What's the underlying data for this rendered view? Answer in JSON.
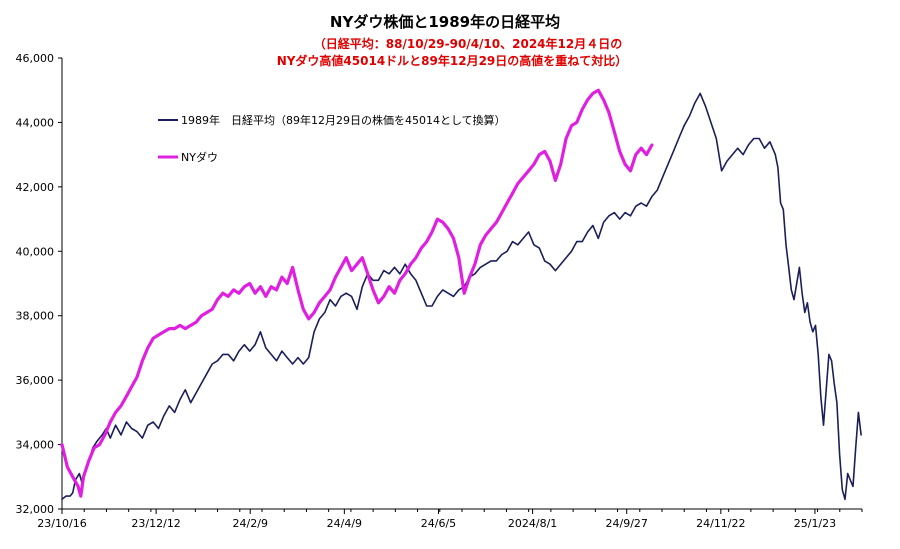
{
  "chart_data": {
    "type": "line",
    "title": "NYダウ株価と1989年の日経平均",
    "subtitle_lines": [
      "（日経平均：88/10/29-90/4/10、2024年12月４日の",
      "NYダウ高値45014ドルと89年12月29日の高値を重ねて対比）"
    ],
    "ylim": [
      32000,
      46000
    ],
    "y_ticks": [
      32000,
      34000,
      36000,
      38000,
      40000,
      42000,
      44000,
      46000
    ],
    "y_tick_labels": [
      "32,000",
      "34,000",
      "36,000",
      "38,000",
      "40,000",
      "42,000",
      "44,000",
      "46,000"
    ],
    "x_tick_labels": [
      "23/10/16",
      "23/12/12",
      "24/2/9",
      "24/4/9",
      "24/6/5",
      "2024/8/1",
      "24/9/27",
      "24/11/22",
      "25/1/23"
    ],
    "x_tick_index": [
      0,
      40,
      80,
      120,
      160,
      200,
      240,
      280,
      320
    ],
    "x_count": 340,
    "grid": false,
    "colors": {
      "nikkei": "#1a1f5c",
      "dow": "#e020e0"
    },
    "series": [
      {
        "name": "1989年　日経平均（89年12月29日の株価を45014として換算）",
        "color": "#1a1f5c",
        "points": [
          [
            0,
            32300
          ],
          [
            3,
            32400
          ],
          [
            6,
            32400
          ],
          [
            8,
            32500
          ],
          [
            10,
            32900
          ],
          [
            13,
            33100
          ],
          [
            15,
            32800
          ],
          [
            17,
            33100
          ],
          [
            20,
            33500
          ],
          [
            23,
            33900
          ],
          [
            26,
            34100
          ],
          [
            30,
            34300
          ],
          [
            33,
            34500
          ],
          [
            36,
            34200
          ],
          [
            40,
            34600
          ],
          [
            44,
            34300
          ],
          [
            48,
            34700
          ],
          [
            52,
            34500
          ],
          [
            56,
            34400
          ],
          [
            60,
            34200
          ],
          [
            64,
            34600
          ],
          [
            68,
            34700
          ],
          [
            72,
            34500
          ],
          [
            76,
            34900
          ],
          [
            80,
            35200
          ],
          [
            84,
            35000
          ],
          [
            88,
            35400
          ],
          [
            92,
            35700
          ],
          [
            96,
            35300
          ],
          [
            100,
            35600
          ],
          [
            104,
            35900
          ],
          [
            108,
            36200
          ],
          [
            112,
            36500
          ],
          [
            116,
            36600
          ],
          [
            120,
            36800
          ],
          [
            124,
            36800
          ],
          [
            128,
            36600
          ],
          [
            132,
            36900
          ],
          [
            136,
            37100
          ],
          [
            140,
            36900
          ],
          [
            144,
            37100
          ],
          [
            148,
            37500
          ],
          [
            152,
            37000
          ],
          [
            156,
            36800
          ],
          [
            160,
            36600
          ],
          [
            164,
            36900
          ],
          [
            168,
            36700
          ],
          [
            172,
            36500
          ],
          [
            176,
            36700
          ],
          [
            180,
            36500
          ],
          [
            184,
            36700
          ],
          [
            188,
            37500
          ],
          [
            192,
            37900
          ],
          [
            196,
            38100
          ],
          [
            200,
            38500
          ],
          [
            204,
            38300
          ],
          [
            208,
            38600
          ],
          [
            212,
            38700
          ],
          [
            216,
            38600
          ],
          [
            220,
            38200
          ],
          [
            224,
            38900
          ],
          [
            228,
            39300
          ],
          [
            232,
            39100
          ],
          [
            236,
            39100
          ],
          [
            240,
            39400
          ],
          [
            244,
            39300
          ],
          [
            248,
            39500
          ],
          [
            252,
            39300
          ],
          [
            256,
            39600
          ],
          [
            260,
            39300
          ],
          [
            264,
            39100
          ],
          [
            268,
            38700
          ],
          [
            272,
            38300
          ],
          [
            276,
            38300
          ],
          [
            280,
            38600
          ],
          [
            284,
            38800
          ],
          [
            288,
            38700
          ],
          [
            292,
            38600
          ],
          [
            296,
            38800
          ],
          [
            300,
            38900
          ],
          [
            304,
            39200
          ],
          [
            308,
            39300
          ],
          [
            312,
            39500
          ],
          [
            316,
            39600
          ],
          [
            320,
            39700
          ],
          [
            324,
            39700
          ],
          [
            328,
            39900
          ],
          [
            332,
            40000
          ],
          [
            336,
            40300
          ],
          [
            340,
            40200
          ],
          [
            344,
            40400
          ],
          [
            348,
            40600
          ],
          [
            352,
            40200
          ],
          [
            356,
            40100
          ],
          [
            360,
            39700
          ],
          [
            364,
            39600
          ],
          [
            368,
            39400
          ],
          [
            372,
            39600
          ],
          [
            376,
            39800
          ],
          [
            380,
            40000
          ],
          [
            384,
            40300
          ],
          [
            388,
            40300
          ],
          [
            392,
            40600
          ],
          [
            396,
            40800
          ],
          [
            400,
            40400
          ],
          [
            404,
            40900
          ],
          [
            408,
            41100
          ],
          [
            412,
            41200
          ],
          [
            416,
            41000
          ],
          [
            420,
            41200
          ],
          [
            424,
            41100
          ],
          [
            428,
            41400
          ],
          [
            432,
            41500
          ],
          [
            436,
            41400
          ],
          [
            440,
            41700
          ],
          [
            444,
            41900
          ],
          [
            448,
            42300
          ],
          [
            452,
            42700
          ],
          [
            456,
            43100
          ],
          [
            460,
            43500
          ],
          [
            464,
            43900
          ],
          [
            468,
            44200
          ],
          [
            472,
            44600
          ],
          [
            476,
            44900
          ],
          [
            480,
            44500
          ],
          [
            484,
            44000
          ],
          [
            488,
            43500
          ],
          [
            492,
            42500
          ],
          [
            496,
            42800
          ],
          [
            500,
            43000
          ],
          [
            504,
            43200
          ],
          [
            508,
            43000
          ],
          [
            512,
            43300
          ],
          [
            516,
            43500
          ],
          [
            520,
            43500
          ],
          [
            524,
            43200
          ],
          [
            528,
            43400
          ],
          [
            532,
            43000
          ],
          [
            534,
            42600
          ],
          [
            536,
            41500
          ],
          [
            538,
            41300
          ],
          [
            540,
            40200
          ],
          [
            542,
            39500
          ],
          [
            544,
            38800
          ],
          [
            546,
            38500
          ],
          [
            548,
            39000
          ],
          [
            550,
            39500
          ],
          [
            552,
            38700
          ],
          [
            554,
            38100
          ],
          [
            556,
            38400
          ],
          [
            558,
            37800
          ],
          [
            560,
            37500
          ],
          [
            562,
            37700
          ],
          [
            564,
            36800
          ],
          [
            566,
            35500
          ],
          [
            568,
            34600
          ],
          [
            570,
            35700
          ],
          [
            572,
            36800
          ],
          [
            574,
            36600
          ],
          [
            576,
            35900
          ],
          [
            578,
            35300
          ],
          [
            580,
            33700
          ],
          [
            582,
            32600
          ],
          [
            584,
            32300
          ],
          [
            586,
            33100
          ],
          [
            588,
            32900
          ],
          [
            590,
            32700
          ],
          [
            592,
            33900
          ],
          [
            594,
            35000
          ],
          [
            596,
            34300
          ]
        ]
      },
      {
        "name": "NYダウ",
        "color": "#e020e0",
        "points": [
          [
            0,
            34000
          ],
          [
            4,
            33300
          ],
          [
            8,
            33000
          ],
          [
            12,
            32700
          ],
          [
            14,
            32400
          ],
          [
            16,
            33000
          ],
          [
            20,
            33500
          ],
          [
            24,
            33900
          ],
          [
            28,
            34000
          ],
          [
            32,
            34300
          ],
          [
            36,
            34700
          ],
          [
            40,
            35000
          ],
          [
            44,
            35200
          ],
          [
            48,
            35500
          ],
          [
            52,
            35800
          ],
          [
            56,
            36100
          ],
          [
            60,
            36600
          ],
          [
            64,
            37000
          ],
          [
            68,
            37300
          ],
          [
            72,
            37400
          ],
          [
            76,
            37500
          ],
          [
            80,
            37600
          ],
          [
            84,
            37600
          ],
          [
            88,
            37700
          ],
          [
            92,
            37600
          ],
          [
            96,
            37700
          ],
          [
            100,
            37800
          ],
          [
            104,
            38000
          ],
          [
            108,
            38100
          ],
          [
            112,
            38200
          ],
          [
            116,
            38500
          ],
          [
            120,
            38700
          ],
          [
            124,
            38600
          ],
          [
            128,
            38800
          ],
          [
            132,
            38700
          ],
          [
            136,
            38900
          ],
          [
            140,
            39000
          ],
          [
            144,
            38700
          ],
          [
            148,
            38900
          ],
          [
            152,
            38600
          ],
          [
            156,
            38900
          ],
          [
            160,
            38800
          ],
          [
            164,
            39200
          ],
          [
            168,
            39000
          ],
          [
            172,
            39500
          ],
          [
            176,
            38800
          ],
          [
            180,
            38200
          ],
          [
            184,
            37900
          ],
          [
            188,
            38100
          ],
          [
            192,
            38400
          ],
          [
            196,
            38600
          ],
          [
            200,
            38800
          ],
          [
            204,
            39200
          ],
          [
            208,
            39500
          ],
          [
            212,
            39800
          ],
          [
            216,
            39400
          ],
          [
            220,
            39600
          ],
          [
            224,
            39800
          ],
          [
            228,
            39300
          ],
          [
            232,
            38800
          ],
          [
            236,
            38400
          ],
          [
            240,
            38600
          ],
          [
            244,
            38900
          ],
          [
            248,
            38700
          ],
          [
            252,
            39100
          ],
          [
            256,
            39300
          ],
          [
            260,
            39600
          ],
          [
            264,
            39800
          ],
          [
            268,
            40100
          ],
          [
            272,
            40300
          ],
          [
            276,
            40600
          ],
          [
            280,
            41000
          ],
          [
            284,
            40900
          ],
          [
            288,
            40700
          ],
          [
            292,
            40400
          ],
          [
            296,
            39800
          ],
          [
            300,
            38700
          ],
          [
            304,
            39200
          ],
          [
            308,
            39600
          ],
          [
            312,
            40200
          ],
          [
            316,
            40500
          ],
          [
            320,
            40700
          ],
          [
            324,
            40900
          ],
          [
            328,
            41200
          ],
          [
            332,
            41500
          ],
          [
            336,
            41800
          ],
          [
            340,
            42100
          ],
          [
            344,
            42300
          ],
          [
            348,
            42500
          ],
          [
            352,
            42700
          ],
          [
            356,
            43000
          ],
          [
            360,
            43100
          ],
          [
            364,
            42800
          ],
          [
            368,
            42200
          ],
          [
            372,
            42700
          ],
          [
            376,
            43500
          ],
          [
            380,
            43900
          ],
          [
            384,
            44000
          ],
          [
            388,
            44400
          ],
          [
            392,
            44700
          ],
          [
            396,
            44900
          ],
          [
            400,
            45000
          ],
          [
            404,
            44700
          ],
          [
            408,
            44300
          ],
          [
            412,
            43700
          ],
          [
            416,
            43100
          ],
          [
            420,
            42700
          ],
          [
            424,
            42500
          ],
          [
            428,
            43000
          ],
          [
            432,
            43200
          ],
          [
            436,
            43000
          ],
          [
            440,
            43300
          ]
        ]
      }
    ]
  }
}
